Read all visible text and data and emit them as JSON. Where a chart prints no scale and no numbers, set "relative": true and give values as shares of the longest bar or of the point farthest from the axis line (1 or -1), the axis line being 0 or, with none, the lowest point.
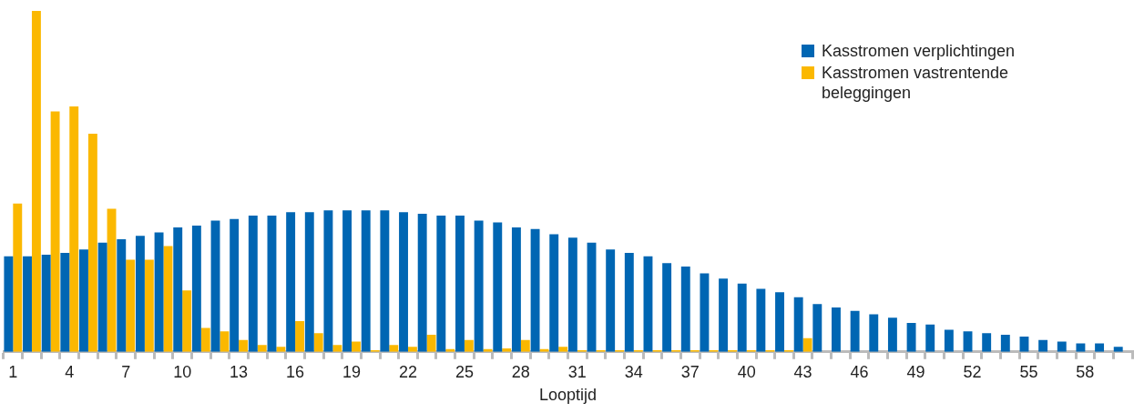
{
  "chart_data": {
    "type": "bar",
    "relative": true,
    "xlabel": "Looptijd",
    "categories": [
      "1",
      null,
      null,
      "4",
      null,
      null,
      "7",
      null,
      null,
      "10",
      null,
      null,
      "13",
      null,
      null,
      "16",
      null,
      null,
      "19",
      null,
      null,
      "22",
      null,
      null,
      "25",
      null,
      null,
      "28",
      null,
      null,
      "31",
      null,
      null,
      "34",
      null,
      null,
      "37",
      null,
      null,
      "40",
      null,
      null,
      "43",
      null,
      null,
      "46",
      null,
      null,
      "49",
      null,
      null,
      "52",
      null,
      null,
      "55",
      null,
      null,
      "58",
      null,
      null
    ],
    "series": [
      {
        "name": "Kasstromen verplichtingen",
        "color": "#0066b3",
        "values": [
          0.28,
          0.28,
          0.285,
          0.29,
          0.3,
          0.32,
          0.33,
          0.34,
          0.35,
          0.365,
          0.37,
          0.385,
          0.39,
          0.4,
          0.4,
          0.41,
          0.41,
          0.415,
          0.415,
          0.415,
          0.415,
          0.41,
          0.405,
          0.4,
          0.4,
          0.385,
          0.38,
          0.365,
          0.36,
          0.345,
          0.335,
          0.32,
          0.3,
          0.29,
          0.28,
          0.26,
          0.25,
          0.23,
          0.215,
          0.2,
          0.185,
          0.175,
          0.16,
          0.14,
          0.13,
          0.12,
          0.11,
          0.1,
          0.085,
          0.08,
          0.065,
          0.06,
          0.055,
          0.05,
          0.045,
          0.035,
          0.03,
          0.025,
          0.025,
          0.015
        ]
      },
      {
        "name": "Kasstromen vastrentende beleggingen",
        "color": "#fbb800",
        "values": [
          0.435,
          1,
          0.705,
          0.72,
          0.64,
          0.42,
          0.27,
          0.27,
          0.31,
          0.18,
          0.07,
          0.06,
          0.035,
          0.02,
          0.015,
          0.09,
          0.055,
          0.02,
          0.03,
          0.005,
          0.02,
          0.015,
          0.05,
          0.008,
          0.035,
          0.008,
          0.01,
          0.035,
          0.008,
          0.015,
          0.005,
          0.005,
          0.005,
          0.005,
          0.005,
          0.005,
          0.005,
          0.005,
          0.005,
          0.005,
          0.005,
          0.005,
          0.04,
          0,
          0,
          0,
          0,
          0,
          0,
          0,
          0,
          0,
          0,
          0,
          0,
          0,
          0,
          0,
          0,
          0
        ]
      }
    ],
    "legend": "top right",
    "grid": false
  }
}
